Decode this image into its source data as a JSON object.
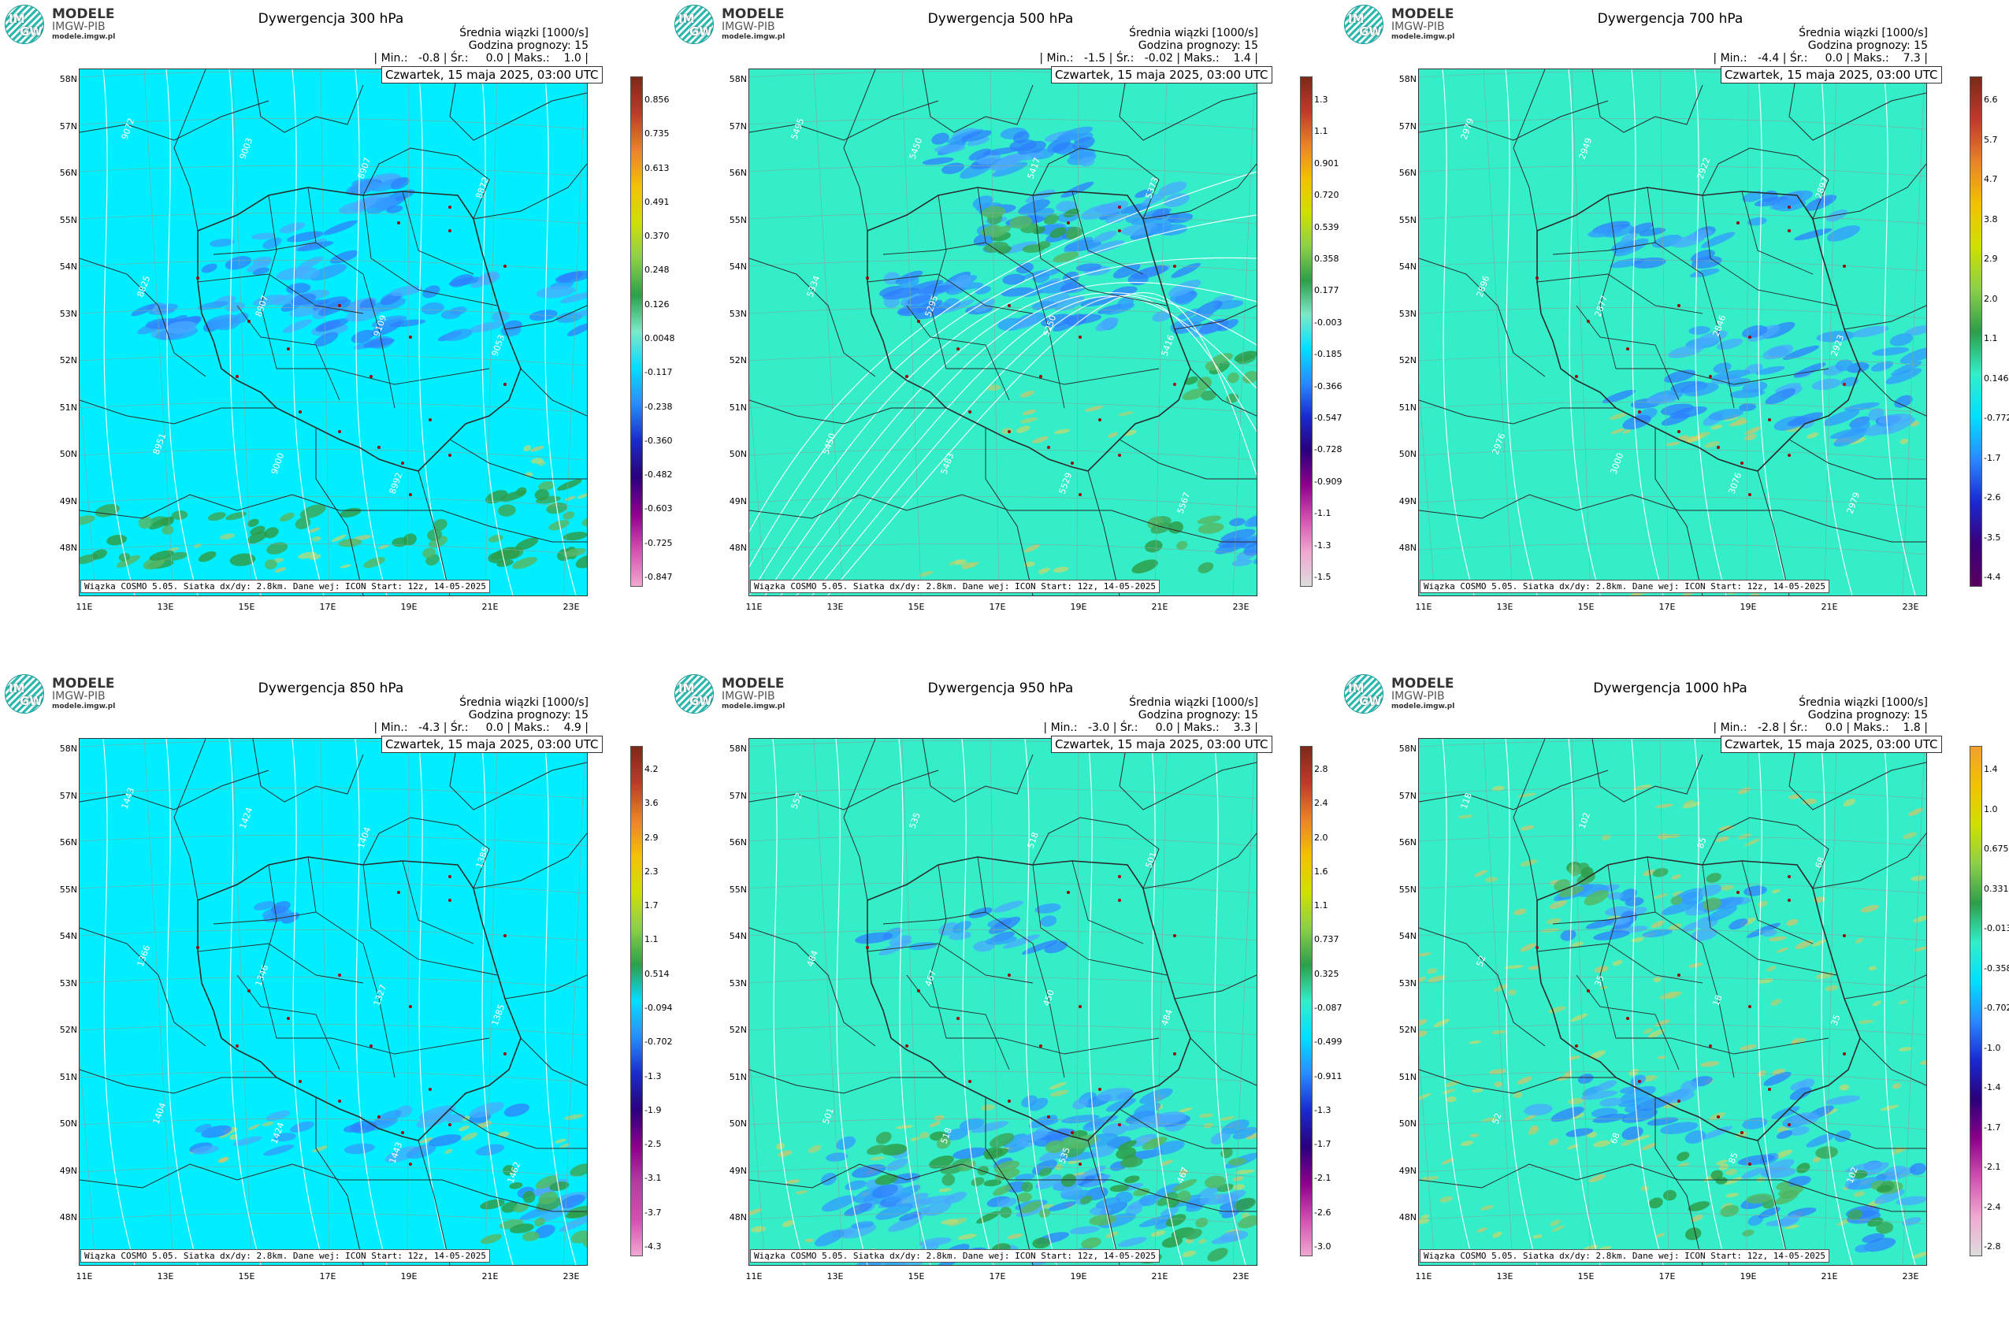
{
  "logo": {
    "line1": "MODELE",
    "line2": "IMGW-PIB",
    "line3": "modele.imgw.pl",
    "mark_top": "IM",
    "mark_bottom": "GW"
  },
  "common": {
    "subtitle": "Średnia wiązki [1000/s]",
    "forecast_hour": "Godzina prognozy: 15",
    "date": "Czwartek, 15 maja 2025, 03:00 UTC",
    "footer": "Wiązka COSMO 5.05. Siatka dx/dy: 2.8km. Dane wej: ICON Start: 12z, 14-05-2025",
    "lat_labels": [
      "58N",
      "57N",
      "56N",
      "55N",
      "54N",
      "53N",
      "52N",
      "51N",
      "50N",
      "49N",
      "48N"
    ],
    "lon_labels": [
      "11E",
      "13E",
      "15E",
      "17E",
      "19E",
      "21E",
      "23E"
    ]
  },
  "colors": {
    "cyan": "#00eeff",
    "teal": "#33eec9",
    "blue": "#3399ff",
    "green": "#2e9e4a",
    "yellowgreen": "#c9d86b",
    "contour": "#ffffff",
    "border": "#2b2b2b"
  },
  "panels": [
    {
      "title": "Dywergencja 300 hPa",
      "stats": "| Min.:   -0.8 | Śr.:     0.0 | Maks.:    1.0 |",
      "bg": "cyan",
      "colorbar": [
        "0.856",
        "0.735",
        "0.613",
        "0.491",
        "0.370",
        "0.248",
        "0.126",
        "0.0048",
        "-0.117",
        "-0.238",
        "-0.360",
        "-0.482",
        "-0.603",
        "-0.725",
        "-0.847"
      ],
      "contour_labels": [
        "9072",
        "9003",
        "8907",
        "8872",
        "8825",
        "8907",
        "9109",
        "9053",
        "8951",
        "9000",
        "8992"
      ]
    },
    {
      "title": "Dywergencja 500 hPa",
      "stats": "| Min.:   -1.5 | Śr.:   -0.02 | Maks.:    1.4 |",
      "bg": "teal",
      "colorbar": [
        "1.3",
        "1.1",
        "0.901",
        "0.720",
        "0.539",
        "0.358",
        "0.177",
        "-0.003",
        "-0.185",
        "-0.366",
        "-0.547",
        "-0.728",
        "-0.909",
        "-1.1",
        "-1.3",
        "-1.5"
      ],
      "contour_labels": [
        "5495",
        "5450",
        "5417",
        "5373",
        "5334",
        "5295",
        "5250",
        "5416",
        "5450",
        "5483",
        "5529",
        "5567"
      ]
    },
    {
      "title": "Dywergencja 700 hPa",
      "stats": "| Min.:   -4.4 | Śr.:     0.0 | Maks.:    7.3 |",
      "bg": "teal",
      "colorbar": [
        "6.6",
        "5.7",
        "4.7",
        "3.8",
        "2.9",
        "2.0",
        "1.1",
        "0.146",
        "-0.772",
        "-1.7",
        "-2.6",
        "-3.5",
        "-4.4"
      ],
      "contour_labels": [
        "2979",
        "2949",
        "2922",
        "2897",
        "2896",
        "2877",
        "2846",
        "2923",
        "2976",
        "3000",
        "3076",
        "2979"
      ]
    },
    {
      "title": "Dywergencja 850 hPa",
      "stats": "| Min.:   -4.3 | Śr.:     0.0 | Maks.:    4.9 |",
      "bg": "cyan",
      "colorbar": [
        "4.2",
        "3.6",
        "2.9",
        "2.3",
        "1.7",
        "1.1",
        "0.514",
        "-0.094",
        "-0.702",
        "-1.3",
        "-1.9",
        "-2.5",
        "-3.1",
        "-3.7",
        "-4.3"
      ],
      "contour_labels": [
        "1443",
        "1424",
        "1404",
        "1385",
        "1366",
        "1346",
        "1327",
        "1385",
        "1404",
        "1424",
        "1443",
        "1462"
      ]
    },
    {
      "title": "Dywergencja 950 hPa",
      "stats": "| Min.:   -3.0 | Śr.:     0.0 | Maks.:    3.3 |",
      "bg": "teal",
      "colorbar": [
        "2.8",
        "2.4",
        "2.0",
        "1.6",
        "1.1",
        "0.737",
        "0.325",
        "-0.087",
        "-0.499",
        "-0.911",
        "-1.3",
        "-1.7",
        "-2.1",
        "-2.6",
        "-3.0"
      ],
      "contour_labels": [
        "552",
        "535",
        "518",
        "501",
        "484",
        "467",
        "450",
        "484",
        "501",
        "518",
        "535",
        "467"
      ]
    },
    {
      "title": "Dywergencja 1000 hPa",
      "stats": "| Min.:   -2.8 | Śr.:     0.0 | Maks.:    1.8 |",
      "bg": "teal",
      "colorbar": [
        "1.4",
        "1.0",
        "0.675",
        "0.331",
        "-0.013",
        "-0.358",
        "-0.702",
        "-1.0",
        "-1.4",
        "-1.7",
        "-2.1",
        "-2.4",
        "-2.8"
      ],
      "contour_labels": [
        "118",
        "102",
        "85",
        "68",
        "52",
        "35",
        "18",
        "35",
        "52",
        "68",
        "85",
        "102"
      ]
    }
  ]
}
